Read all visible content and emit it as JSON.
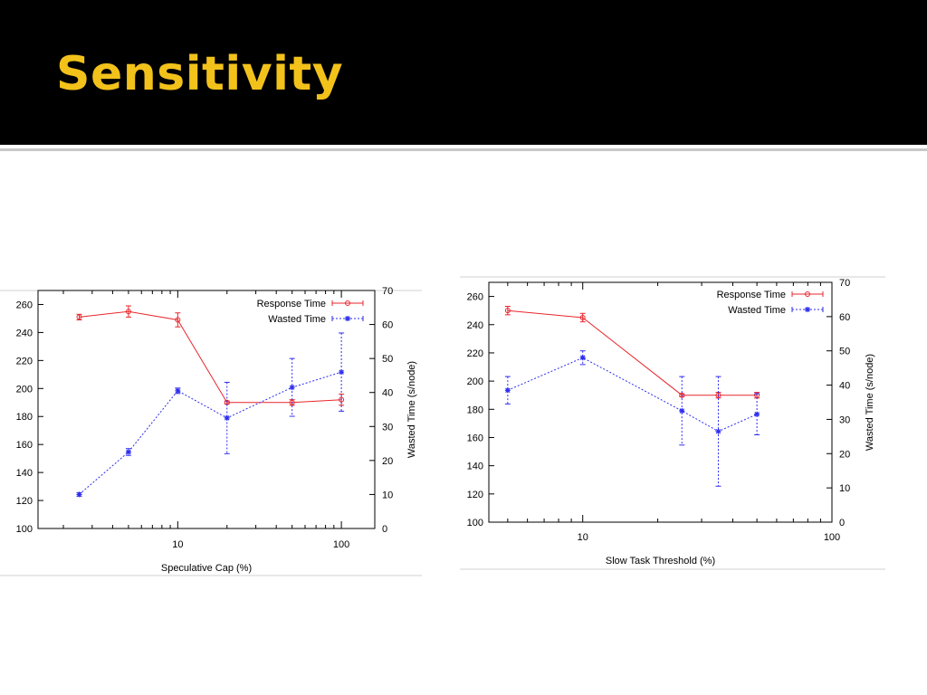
{
  "slide": {
    "title": "Sensitivity"
  },
  "colors": {
    "title": "#f2c21b",
    "response": "#e8262c",
    "wasted": "#2d2df0"
  },
  "chart_data": [
    {
      "type": "line",
      "xlabel": "Speculative Cap (%)",
      "ylabel": "",
      "y2label": "Wasted Time (s/node)",
      "xscale": "log",
      "xlim": [
        1.4,
        160
      ],
      "xticks_major": [
        10,
        100
      ],
      "ylim": [
        100,
        270
      ],
      "yticks": [
        100,
        120,
        140,
        160,
        180,
        200,
        220,
        240,
        260
      ],
      "y2lim": [
        0,
        70
      ],
      "y2ticks": [
        0,
        10,
        20,
        30,
        40,
        50,
        60,
        70
      ],
      "legend": "top-right",
      "grid": false,
      "series": [
        {
          "name": "Response Time",
          "axis": "left",
          "style": "solid",
          "marker": "circle",
          "x": [
            2.5,
            5,
            10,
            20,
            50,
            100
          ],
          "y": [
            251,
            255,
            249,
            190,
            190,
            192
          ],
          "err": [
            2,
            4,
            5,
            1,
            2,
            4
          ]
        },
        {
          "name": "Wasted Time",
          "axis": "right",
          "style": "dotted",
          "marker": "star",
          "x": [
            2.5,
            5,
            10,
            20,
            50,
            100
          ],
          "y": [
            10,
            22.5,
            40.5,
            32.5,
            41.5,
            46
          ],
          "err": [
            0.5,
            1,
            0.8,
            10.5,
            8.5,
            11.5
          ]
        }
      ]
    },
    {
      "type": "line",
      "xlabel": "Slow Task Threshold (%)",
      "ylabel": "",
      "y2label": "Wasted Time (s/node)",
      "xscale": "log",
      "xlim": [
        4.2,
        100
      ],
      "xticks_major": [
        10,
        100
      ],
      "ylim": [
        100,
        270
      ],
      "yticks": [
        100,
        120,
        140,
        160,
        180,
        200,
        220,
        240,
        260
      ],
      "y2lim": [
        0,
        70
      ],
      "y2ticks": [
        0,
        10,
        20,
        30,
        40,
        50,
        60,
        70
      ],
      "legend": "top-right",
      "grid": false,
      "series": [
        {
          "name": "Response Time",
          "axis": "left",
          "style": "solid",
          "marker": "circle",
          "x": [
            5,
            10,
            25,
            35,
            50
          ],
          "y": [
            250,
            245,
            190,
            190,
            190
          ],
          "err": [
            3,
            3,
            1,
            2,
            2
          ]
        },
        {
          "name": "Wasted Time",
          "axis": "right",
          "style": "dotted",
          "marker": "star",
          "x": [
            5,
            10,
            25,
            35,
            50
          ],
          "y": [
            38.5,
            48,
            32.5,
            26.5,
            31.5
          ],
          "err": [
            4,
            2,
            10,
            16,
            6
          ]
        }
      ]
    }
  ]
}
